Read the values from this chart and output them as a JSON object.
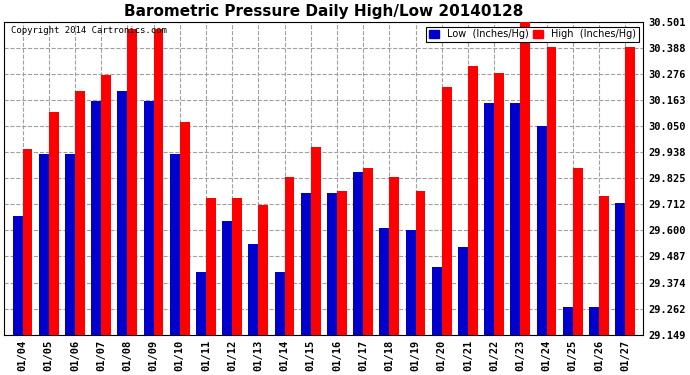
{
  "title": "Barometric Pressure Daily High/Low 20140128",
  "copyright": "Copyright 2014 Cartronics.com",
  "legend_low": "Low  (Inches/Hg)",
  "legend_high": "High  (Inches/Hg)",
  "dates": [
    "01/04",
    "01/05",
    "01/06",
    "01/07",
    "01/08",
    "01/09",
    "01/10",
    "01/11",
    "01/12",
    "01/13",
    "01/14",
    "01/15",
    "01/16",
    "01/17",
    "01/18",
    "01/19",
    "01/20",
    "01/21",
    "01/22",
    "01/23",
    "01/24",
    "01/25",
    "01/26",
    "01/27"
  ],
  "low": [
    29.66,
    29.93,
    29.93,
    30.16,
    30.2,
    30.16,
    29.93,
    29.42,
    29.64,
    29.54,
    29.42,
    29.76,
    29.76,
    29.85,
    29.61,
    29.6,
    29.44,
    29.53,
    30.15,
    30.15,
    30.05,
    29.27,
    29.27,
    29.72
  ],
  "high": [
    29.95,
    30.11,
    30.2,
    30.27,
    30.47,
    30.47,
    30.07,
    29.74,
    29.74,
    29.71,
    29.83,
    29.96,
    29.77,
    29.87,
    29.83,
    29.77,
    30.22,
    30.31,
    30.28,
    30.5,
    30.39,
    29.87,
    29.75,
    30.39
  ],
  "ylim_min": 29.149,
  "ylim_max": 30.501,
  "yticks": [
    29.149,
    29.262,
    29.374,
    29.487,
    29.6,
    29.712,
    29.825,
    29.938,
    30.05,
    30.163,
    30.276,
    30.388,
    30.501
  ],
  "low_color": "#0000cc",
  "high_color": "#ff0000",
  "bg_color": "#ffffff",
  "grid_color": "#a0a0a0",
  "title_fontsize": 11,
  "tick_fontsize": 7.5,
  "bar_width": 0.38
}
